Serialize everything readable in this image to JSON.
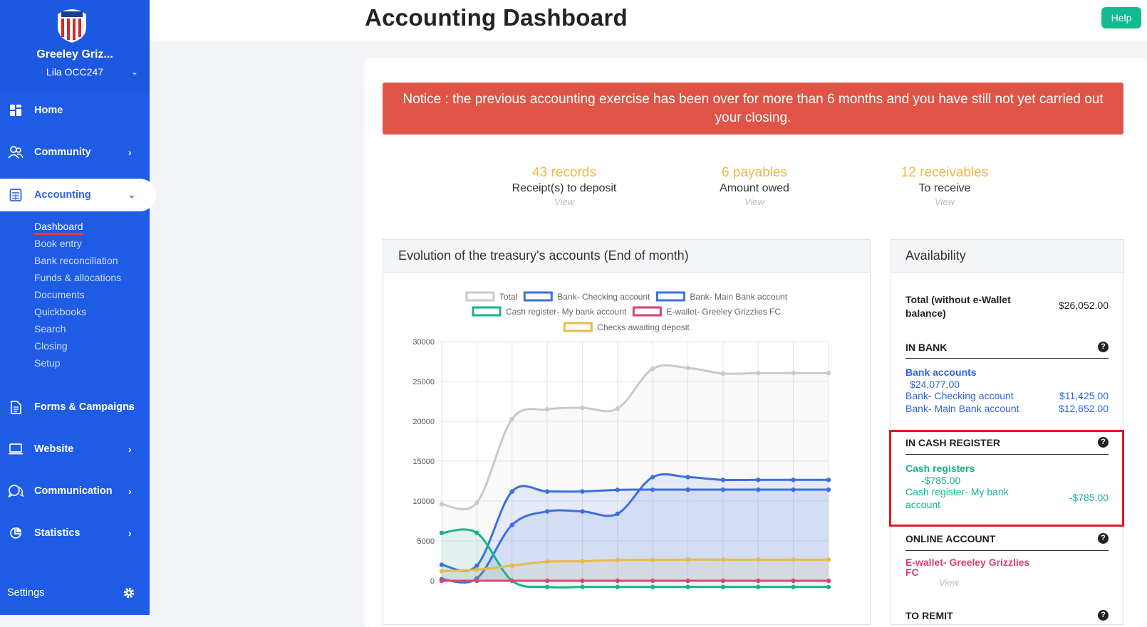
{
  "sidebar": {
    "club_name": "Greeley Griz...",
    "user_name": "Lila OCC247",
    "nav": [
      {
        "label": "Home",
        "icon": "dashboard-grid-icon"
      },
      {
        "label": "Community",
        "icon": "users-icon"
      },
      {
        "label": "Accounting",
        "icon": "calculator-icon"
      },
      {
        "label": "Forms & Campaigns",
        "icon": "document-icon"
      },
      {
        "label": "Website",
        "icon": "laptop-icon"
      },
      {
        "label": "Communication",
        "icon": "chat-bubbles-icon"
      },
      {
        "label": "Statistics",
        "icon": "pie-chart-icon"
      }
    ],
    "accounting_sub": [
      "Dashboard",
      "Book entry",
      "Bank reconciliation",
      "Funds & allocations",
      "Documents",
      "Quickbooks",
      "Search",
      "Closing",
      "Setup"
    ],
    "settings_label": "Settings"
  },
  "header": {
    "title": "Accounting Dashboard",
    "help_label": "Help"
  },
  "notice": "Notice : the previous accounting exercise has been over for more than 6 months and you have still not yet carried out your closing.",
  "stats": [
    {
      "number": "43 records",
      "label": "Receipt(s) to deposit",
      "link": "View"
    },
    {
      "number": "6 payables",
      "label": "Amount owed",
      "link": "View"
    },
    {
      "number": "12 receivables",
      "label": "To receive",
      "link": "View"
    }
  ],
  "chart_title": "Evolution of the treasury's accounts (End of month)",
  "chart_data": {
    "type": "line",
    "x": [
      "",
      "",
      "",
      "",
      "",
      "",
      "",
      "",
      "",
      "",
      "",
      ""
    ],
    "ylim": [
      0,
      30000
    ],
    "yticks": [
      "30000",
      "25000",
      "20000",
      "15000",
      "10000",
      "5000",
      "0"
    ],
    "grid": true,
    "legend_position": "top",
    "series": [
      {
        "name": "Total",
        "color": "#c9c9c9",
        "values": [
          9600,
          9800,
          20300,
          21500,
          21700,
          21600,
          26600,
          26700,
          26000,
          26050,
          26050,
          26052
        ]
      },
      {
        "name": "Bank- Checking account",
        "color": "#3b6fe0",
        "values": [
          2000,
          1900,
          11200,
          11200,
          11200,
          11400,
          11425,
          11425,
          11425,
          11425,
          11425,
          11425
        ]
      },
      {
        "name": "Bank- Main Bank account",
        "color": "#3b6fe0",
        "values": [
          200,
          300,
          7000,
          8700,
          8700,
          8400,
          13000,
          13000,
          12652,
          12652,
          12652,
          12652
        ]
      },
      {
        "name": "Cash register- My bank account",
        "color": "#14b48c",
        "values": [
          6000,
          6000,
          0,
          -785,
          -785,
          -785,
          -785,
          -785,
          -785,
          -785,
          -785,
          -785
        ]
      },
      {
        "name": "E-wallet- Greeley Grizzlies FC",
        "color": "#d94173",
        "values": [
          0,
          0,
          0,
          0,
          0,
          0,
          0,
          0,
          0,
          0,
          0,
          0
        ]
      },
      {
        "name": "Checks awaiting deposit",
        "color": "#e9b949",
        "values": [
          1200,
          1400,
          1900,
          2400,
          2450,
          2600,
          2620,
          2650,
          2650,
          2650,
          2650,
          2650
        ]
      }
    ]
  },
  "availability": {
    "title": "Availability",
    "total_label": "Total (without e-Wallet balance)",
    "total_value": "$26,052.00",
    "in_bank": {
      "title": "IN BANK",
      "group_label": "Bank accounts",
      "group_value": "$24,077.00",
      "accounts": [
        {
          "name": "Bank- Checking account",
          "value": "$11,425.00"
        },
        {
          "name": "Bank- Main Bank account",
          "value": "$12,652.00"
        }
      ]
    },
    "in_cash": {
      "title": "IN CASH REGISTER",
      "group_label": "Cash registers",
      "group_value": "-$785.00",
      "account_name": "Cash register- My bank account",
      "account_value": "-$785.00"
    },
    "online": {
      "title": "ONLINE ACCOUNT",
      "account_name": "E-wallet- Greeley Grizzlies FC",
      "link": "View"
    },
    "to_remit_title": "TO REMIT"
  }
}
